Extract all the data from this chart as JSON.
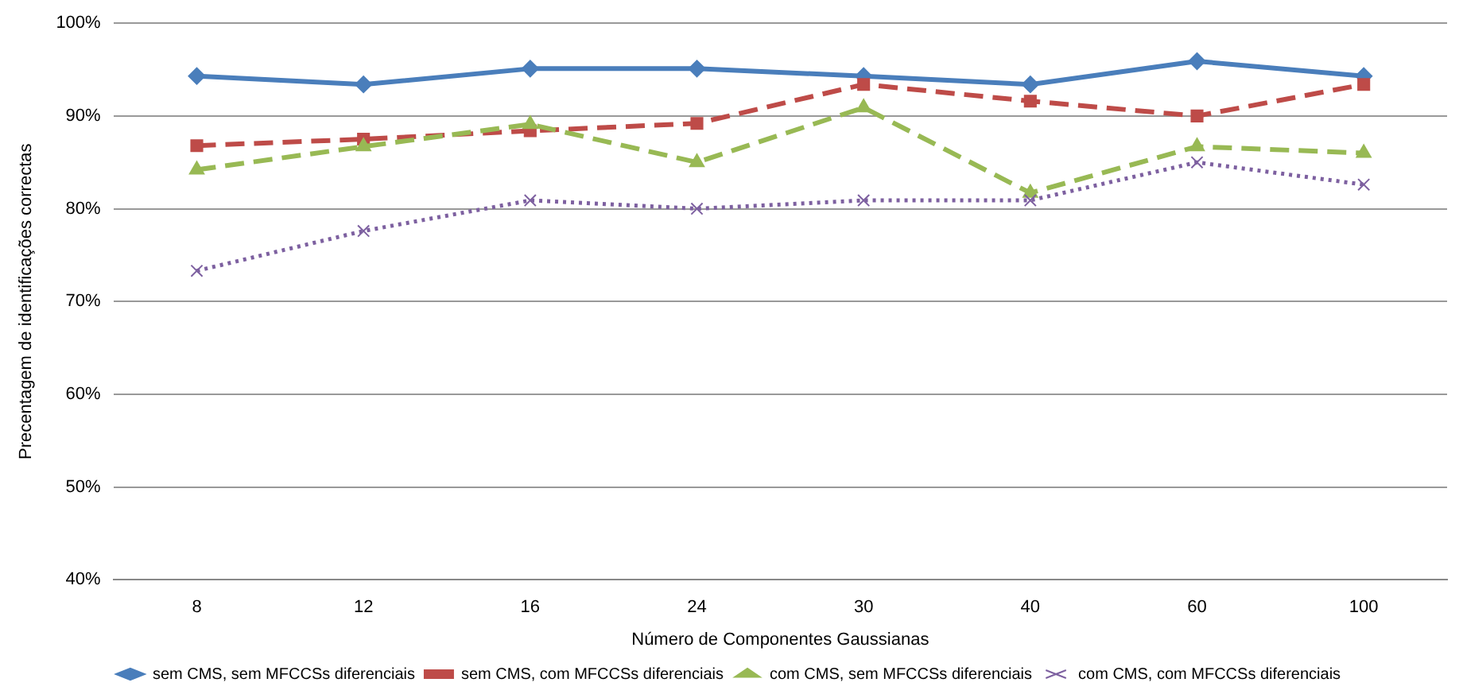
{
  "chart_data": {
    "type": "line",
    "xlabel": "Número de Componentes Gaussianas",
    "ylabel": "Precentagem de identificações correctas",
    "categories": [
      "8",
      "12",
      "16",
      "24",
      "30",
      "40",
      "60",
      "100"
    ],
    "ylim": [
      40,
      100
    ],
    "yticks": [
      {
        "value": 40,
        "label": "40%"
      },
      {
        "value": 50,
        "label": "50%"
      },
      {
        "value": 60,
        "label": "60%"
      },
      {
        "value": 70,
        "label": "70%"
      },
      {
        "value": 80,
        "label": "80%"
      },
      {
        "value": 90,
        "label": "90%"
      },
      {
        "value": 100,
        "label": "100%"
      }
    ],
    "grid": "y",
    "legend": "bottom",
    "series": [
      {
        "name": "sem CMS, sem MFCCSs diferenciais",
        "color": "#4a7ebb",
        "marker": "diamond",
        "line_style": "solid",
        "values": [
          94.3,
          93.4,
          95.1,
          95.1,
          94.3,
          93.4,
          95.9,
          94.3
        ]
      },
      {
        "name": "sem CMS, com MFCCSs diferenciais",
        "color": "#be4b48",
        "marker": "square",
        "line_style": "dashed",
        "values": [
          86.8,
          87.5,
          88.4,
          89.2,
          93.4,
          91.6,
          90.0,
          93.4
        ]
      },
      {
        "name": "com CMS, sem MFCCSs diferenciais",
        "color": "#98b954",
        "marker": "triangle",
        "line_style": "dashed",
        "values": [
          84.2,
          86.7,
          89.1,
          85.0,
          90.9,
          81.7,
          86.7,
          86.0
        ]
      },
      {
        "name": "com CMS, com MFCCSs diferenciais",
        "color": "#7d60a0",
        "marker": "cross",
        "line_style": "dotted",
        "values": [
          73.3,
          77.6,
          80.9,
          80.0,
          80.9,
          80.9,
          85.0,
          82.6
        ]
      }
    ]
  }
}
